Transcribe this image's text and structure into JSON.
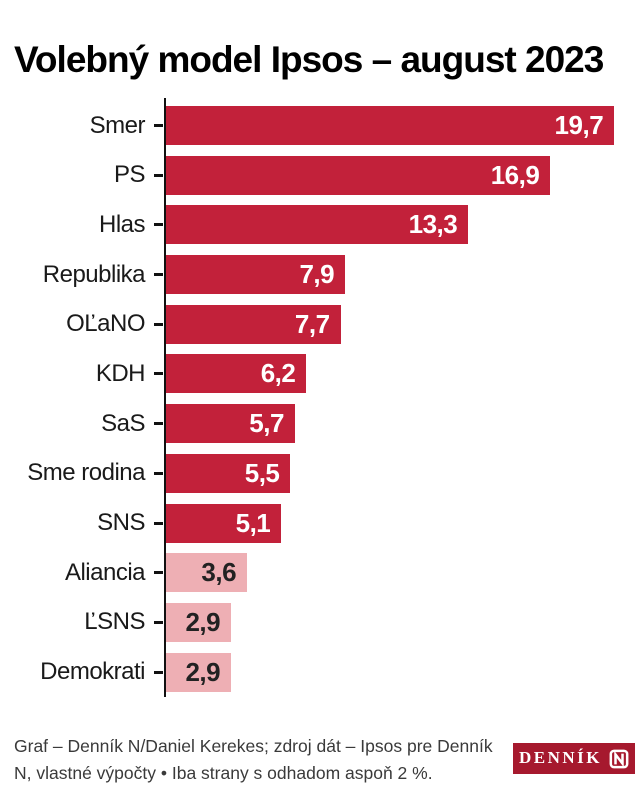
{
  "title": "Volebný model Ipsos – august 2023",
  "chart_data": {
    "type": "bar",
    "orientation": "horizontal",
    "unit": "%",
    "xlim": [
      0,
      20
    ],
    "grid": false,
    "legend": "none",
    "categories": [
      "Smer",
      "PS",
      "Hlas",
      "Republika",
      "OĽaNO",
      "KDH",
      "SaS",
      "Sme rodina",
      "SNS",
      "Aliancia",
      "ĽSNS",
      "Demokrati"
    ],
    "values": [
      19.7,
      16.9,
      13.3,
      7.9,
      7.7,
      6.2,
      5.7,
      5.5,
      5.1,
      3.6,
      2.9,
      2.9
    ],
    "items": [
      {
        "label": "Smer",
        "value": 19.7,
        "display": "19,7",
        "tier": "dark"
      },
      {
        "label": "PS",
        "value": 16.9,
        "display": "16,9",
        "tier": "dark"
      },
      {
        "label": "Hlas",
        "value": 13.3,
        "display": "13,3",
        "tier": "dark"
      },
      {
        "label": "Republika",
        "value": 7.9,
        "display": "7,9",
        "tier": "dark"
      },
      {
        "label": "OĽaNO",
        "value": 7.7,
        "display": "7,7",
        "tier": "dark"
      },
      {
        "label": "KDH",
        "value": 6.2,
        "display": "6,2",
        "tier": "dark"
      },
      {
        "label": "SaS",
        "value": 5.7,
        "display": "5,7",
        "tier": "dark"
      },
      {
        "label": "Sme rodina",
        "value": 5.5,
        "display": "5,5",
        "tier": "dark"
      },
      {
        "label": "SNS",
        "value": 5.1,
        "display": "5,1",
        "tier": "dark"
      },
      {
        "label": "Aliancia",
        "value": 3.6,
        "display": "3,6",
        "tier": "light"
      },
      {
        "label": "ĽSNS",
        "value": 2.9,
        "display": "2,9",
        "tier": "light"
      },
      {
        "label": "Demokrati",
        "value": 2.9,
        "display": "2,9",
        "tier": "light"
      }
    ]
  },
  "colors": {
    "bar_dark": "#c2213a",
    "bar_light": "#eeafb4",
    "value_on_dark": "#ffffff",
    "value_on_light": "#222222",
    "logo_red": "#a6192e",
    "axis": "#111111"
  },
  "footer": {
    "credit_line1": "Graf – Denník N/Daniel Kerekes; zdroj dát – Ipsos pre Denník",
    "credit_line2": "N, vlastné výpočty • Iba strany s odhadom aspoň 2 %.",
    "logo_text": "DENNÍK"
  }
}
